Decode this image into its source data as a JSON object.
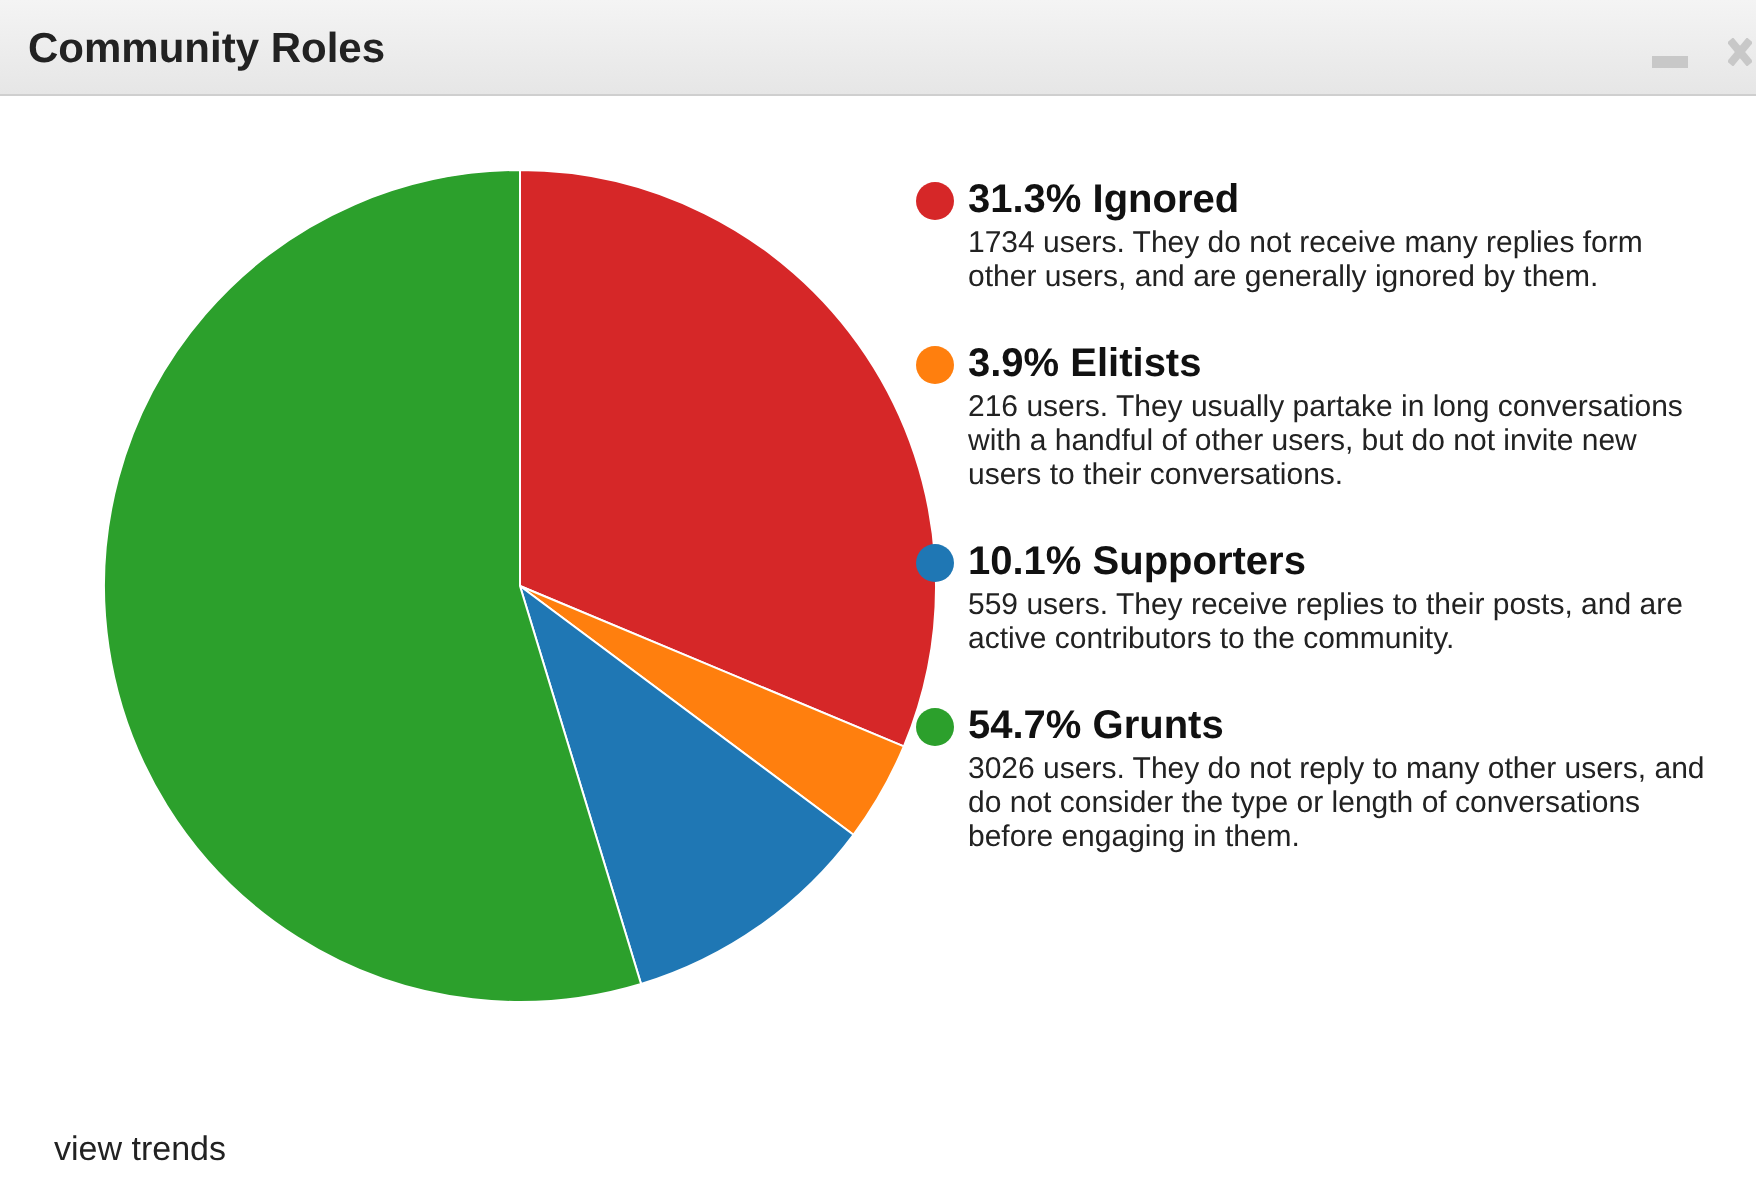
{
  "chart_data": {
    "type": "pie",
    "title": "Community Roles",
    "categories": [
      "Ignored",
      "Elitists",
      "Supporters",
      "Grunts"
    ],
    "values": [
      31.3,
      3.9,
      10.1,
      54.7
    ],
    "value_labels": [
      "31.3%",
      "3.9%",
      "10.1%",
      "54.7%"
    ],
    "colors": [
      "#d62728",
      "#ff7f0e",
      "#1f77b4",
      "#2ca02c"
    ],
    "legend": "right",
    "annotations": [
      "1734 users. They do not receive many replies form other users, and are generally ignored by them.",
      "216 users. They usually partake in long conversations with a handful of other users, but do not invite new users to their conversations.",
      "559 users. They receive replies to their posts, and are active contributors to the community.",
      "3026 users. They do not reply to many other users, and do not consider the type or length of conversations before engaging in them.",
      "view trends"
    ]
  }
}
